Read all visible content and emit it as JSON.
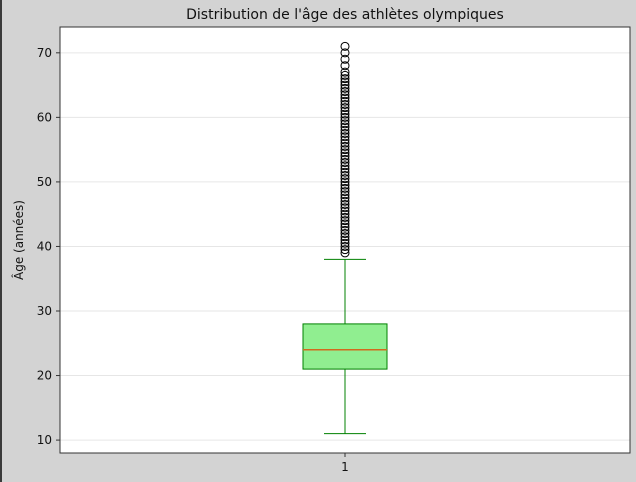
{
  "chart_data": {
    "type": "boxplot",
    "title": "Distribution de l'âge des athlètes olympiques",
    "ylabel": "Âge (années)",
    "xlabel": "",
    "categories": [
      "1"
    ],
    "y_ticks": [
      10,
      20,
      30,
      40,
      50,
      60,
      70
    ],
    "ylim": [
      8,
      74
    ],
    "grid": "horizontal",
    "series": [
      {
        "whisker_low": 11,
        "q1": 21,
        "median": 24,
        "q3": 28,
        "whisker_high": 38,
        "outliers": [
          39,
          39.5,
          40,
          40.5,
          41,
          41.5,
          42,
          42.5,
          43,
          43.5,
          44,
          44.5,
          45,
          45.5,
          46,
          46.5,
          47,
          47.5,
          48,
          48.5,
          49,
          49.5,
          50,
          50.5,
          51,
          51.5,
          52,
          52.5,
          53,
          53.5,
          54,
          54.5,
          55,
          55.5,
          56,
          56.5,
          57,
          57.5,
          58,
          58.5,
          59,
          59.5,
          60,
          60.5,
          61,
          61.5,
          62,
          62.5,
          63,
          63.5,
          64,
          64.5,
          65,
          65.5,
          66,
          66.5,
          67,
          68,
          69,
          70,
          71
        ]
      }
    ],
    "colors": {
      "box_fill": "#90ee90",
      "box_edge": "#008000",
      "median": "#d2691e",
      "outlier_edge": "#000000",
      "grid": "#e6e6e6",
      "axes": "#333333",
      "figure_bg": "#d3d3d3",
      "plot_bg": "#ffffff"
    }
  }
}
